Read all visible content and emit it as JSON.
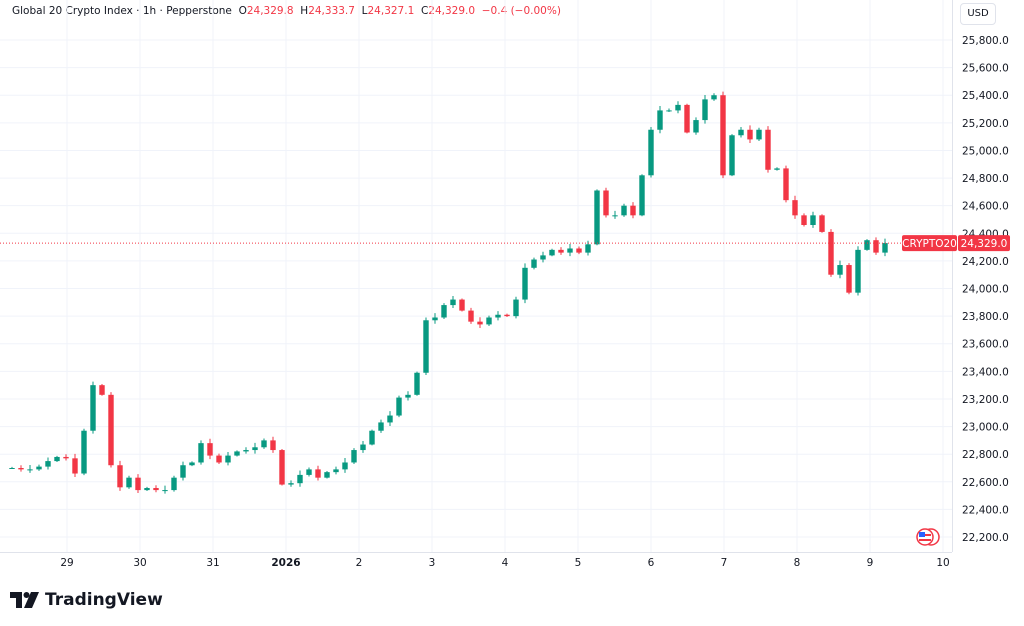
{
  "header": {
    "symbol": "Global 20 Crypto Index",
    "interval": "1h",
    "source": "Pepperstone",
    "o_label": "O",
    "o": "24,329.8",
    "h_label": "H",
    "h": "24,333.7",
    "l_label": "L",
    "l": "24,327.1",
    "c_label": "C",
    "c": "24,329.0",
    "change": "−0.4 (−0.00%)"
  },
  "currency": "USD",
  "last_price": {
    "ticker": "CRYPTO20",
    "value": "24,329.0"
  },
  "brand": "TradingView",
  "colors": {
    "up": "#089981",
    "down": "#f23645",
    "grid": "#f0f3fa"
  },
  "chart_data": {
    "type": "candlestick",
    "title": "Global 20 Crypto Index · 1h · Pepperstone",
    "ylim": [
      22100,
      25900
    ],
    "y_ticks": [
      "22,200.0",
      "22,400.0",
      "22,600.0",
      "22,800.0",
      "23,000.0",
      "23,200.0",
      "23,400.0",
      "23,600.0",
      "23,800.0",
      "24,000.0",
      "24,200.0",
      "24,400.0",
      "24,600.0",
      "24,800.0",
      "25,000.0",
      "25,200.0",
      "25,400.0",
      "25,600.0",
      "25,800.0"
    ],
    "x_ticks": [
      "29",
      "30",
      "31",
      "2026",
      "2",
      "3",
      "4",
      "5",
      "6",
      "7",
      "8",
      "9",
      "10"
    ],
    "grid": true,
    "last_value": 24329.0,
    "closes": [
      22700,
      22690,
      22690,
      22710,
      22750,
      22780,
      22770,
      22660,
      22970,
      23300,
      23230,
      22720,
      22560,
      22630,
      22540,
      22555,
      22540,
      22540,
      22630,
      22720,
      22740,
      22880,
      22790,
      22740,
      22790,
      22820,
      22830,
      22850,
      22900,
      22830,
      22580,
      22590,
      22650,
      22690,
      22630,
      22670,
      22690,
      22740,
      22830,
      22870,
      22970,
      23030,
      23080,
      23210,
      23230,
      23390,
      23770,
      23790,
      23880,
      23920,
      23840,
      23760,
      23740,
      23790,
      23810,
      23800,
      23920,
      24150,
      24210,
      24240,
      24280,
      24260,
      24290,
      24260,
      24320,
      24710,
      24530,
      24530,
      24600,
      24530,
      24820,
      25150,
      25290,
      25290,
      25330,
      25130,
      25220,
      25370,
      25400,
      24820,
      25110,
      25150,
      25080,
      25150,
      24860,
      24870,
      24640,
      24530,
      24460,
      24530,
      24410,
      24100,
      24170,
      23970,
      24280,
      24350,
      24260,
      24329
    ]
  }
}
